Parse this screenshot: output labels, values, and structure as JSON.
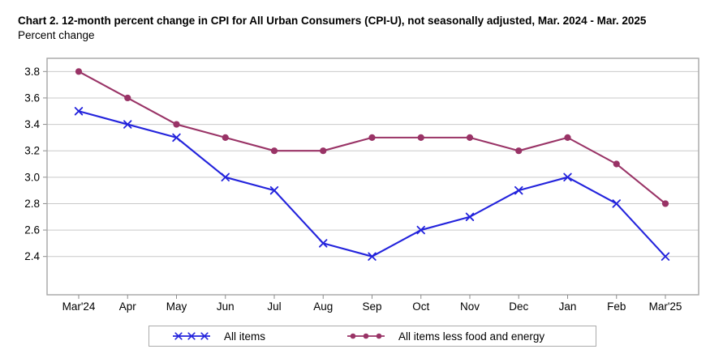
{
  "header": {
    "title": "Chart 2. 12-month percent change in CPI for All Urban Consumers (CPI-U), not seasonally adjusted, Mar. 2024 - Mar. 2025",
    "subtitle": "Percent change"
  },
  "chart_data": {
    "type": "line",
    "title": "Chart 2. 12-month percent change in CPI for All Urban Consumers (CPI-U), not seasonally adjusted, Mar. 2024 - Mar. 2025",
    "ylabel": "Percent change",
    "xlabel": "",
    "categories": [
      "Mar'24",
      "Apr",
      "May",
      "Jun",
      "Jul",
      "Aug",
      "Sep",
      "Oct",
      "Nov",
      "Dec",
      "Jan",
      "Feb",
      "Mar'25"
    ],
    "series": [
      {
        "name": "All items",
        "marker": "x",
        "color": "#2323dc",
        "values": [
          3.5,
          3.4,
          3.3,
          3.0,
          2.9,
          2.5,
          2.4,
          2.6,
          2.7,
          2.9,
          3.0,
          2.8,
          2.4
        ]
      },
      {
        "name": "All items less food and energy",
        "marker": "circle",
        "color": "#993366",
        "values": [
          3.8,
          3.6,
          3.4,
          3.3,
          3.2,
          3.2,
          3.3,
          3.3,
          3.3,
          3.2,
          3.3,
          3.1,
          2.8
        ]
      }
    ],
    "yticks": [
      2.4,
      2.6,
      2.8,
      3.0,
      3.2,
      3.4,
      3.6,
      3.8
    ],
    "ylim": [
      2.11,
      3.9
    ],
    "grid": "horizontal",
    "legend_position": "bottom",
    "gridline_color": "#c9c9c9",
    "border_color": "#a6a6a6",
    "tick_color": "#8c8c8c",
    "text_color": "#000000"
  }
}
